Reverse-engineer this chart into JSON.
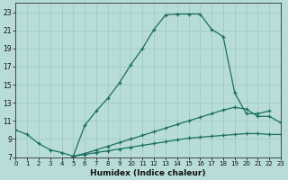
{
  "xlabel": "Humidex (Indice chaleur)",
  "xlim": [
    0,
    23
  ],
  "ylim": [
    7,
    24
  ],
  "xticks": [
    0,
    1,
    2,
    3,
    4,
    5,
    6,
    7,
    8,
    9,
    10,
    11,
    12,
    13,
    14,
    15,
    16,
    17,
    18,
    19,
    20,
    21,
    22,
    23
  ],
  "yticks": [
    7,
    9,
    11,
    13,
    15,
    17,
    19,
    21,
    23
  ],
  "bg_color": "#b8ddd8",
  "line_color": "#1a6e62",
  "curve1_x": [
    0,
    1,
    2,
    3,
    4,
    5,
    6,
    7,
    8,
    9,
    10,
    11,
    12,
    13,
    14,
    15,
    16,
    17,
    18,
    19,
    20,
    21,
    22
  ],
  "curve1_y": [
    10.0,
    9.5,
    8.5,
    7.8,
    7.5,
    7.1,
    10.5,
    12.1,
    13.5,
    15.2,
    17.2,
    19.0,
    21.1,
    22.7,
    22.8,
    22.8,
    22.8,
    21.1,
    20.3,
    14.1,
    11.8,
    11.8,
    12.1
  ],
  "curve2_x": [
    0,
    1,
    2,
    3,
    4,
    5,
    6,
    7,
    8,
    9,
    10,
    11,
    12,
    13,
    14,
    15,
    16,
    17,
    18,
    19,
    20,
    21,
    22,
    23
  ],
  "curve2_y": [
    null,
    null,
    null,
    null,
    null,
    7.1,
    7.4,
    7.8,
    8.2,
    8.6,
    9.0,
    9.4,
    9.8,
    10.2,
    10.6,
    11.0,
    11.4,
    11.8,
    12.2,
    12.5,
    12.3,
    11.5,
    11.5,
    10.8
  ],
  "curve3_x": [
    0,
    1,
    2,
    3,
    4,
    5,
    6,
    7,
    8,
    9,
    10,
    11,
    12,
    13,
    14,
    15,
    16,
    17,
    18,
    19,
    20,
    21,
    22,
    23
  ],
  "curve3_y": [
    null,
    null,
    null,
    null,
    null,
    7.1,
    7.3,
    7.5,
    7.7,
    7.9,
    8.1,
    8.3,
    8.5,
    8.7,
    8.9,
    9.1,
    9.2,
    9.3,
    9.4,
    9.5,
    9.6,
    9.6,
    9.5,
    9.5
  ]
}
